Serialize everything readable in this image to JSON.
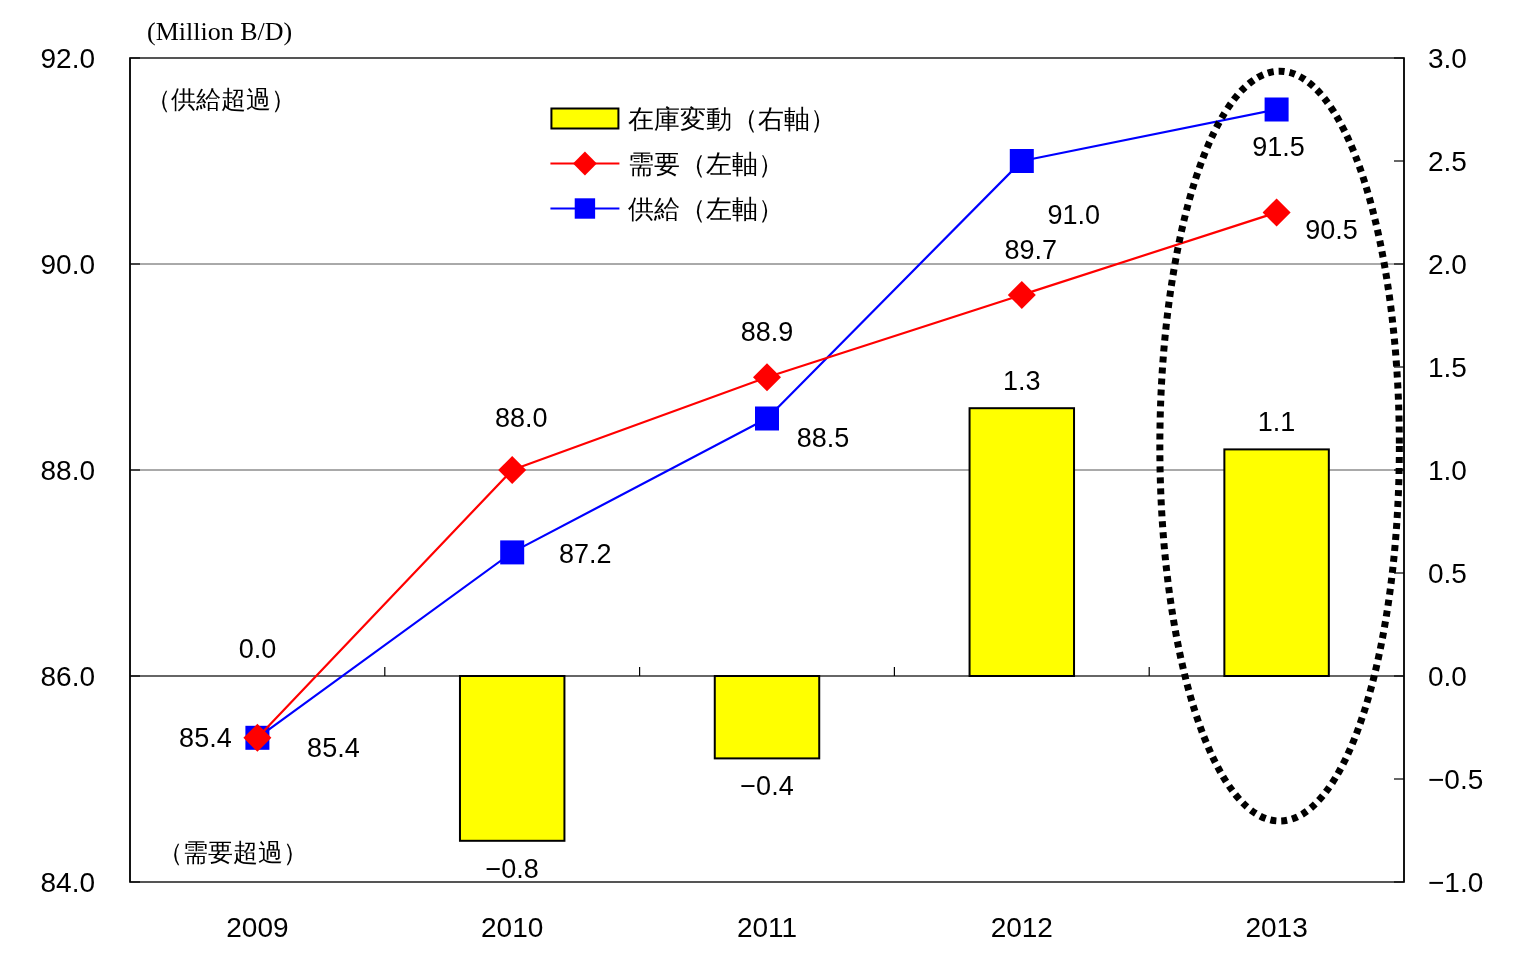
{
  "chart_data": {
    "type": "bar",
    "ylabel": "(Million B/D)",
    "annotations": [
      "（供給超過）",
      "（需要超過）"
    ],
    "categories": [
      "2009",
      "2010",
      "2011",
      "2012",
      "2013"
    ],
    "series": [
      {
        "name": "在庫変動（右軸）",
        "axis": "y2",
        "color": "#ffff00",
        "values": [
          0.0,
          -0.8,
          -0.4,
          1.3,
          1.1
        ],
        "value_labels": [
          "0.0",
          "−0.8",
          "−0.4",
          "1.3",
          "1.1"
        ]
      },
      {
        "name": "需要（左軸）",
        "type": "line",
        "marker": "diamond",
        "color": "#ff0000",
        "values": [
          85.4,
          88.0,
          88.9,
          89.7,
          90.5
        ],
        "value_labels": [
          "85.4",
          "88.0",
          "88.9",
          "89.7",
          "90.5"
        ]
      },
      {
        "name": "供給（左軸）",
        "type": "line",
        "marker": "square",
        "color": "#0000ff",
        "values": [
          85.4,
          87.2,
          88.5,
          91.0,
          91.5
        ],
        "value_labels": [
          "85.4",
          "87.2",
          "88.5",
          "91.0",
          "91.5"
        ]
      }
    ],
    "ylim": [
      84,
      92
    ],
    "yticks": [
      {
        "value": 84,
        "label": "84.0"
      },
      {
        "value": 86,
        "label": "86.0"
      },
      {
        "value": 88,
        "label": "88.0"
      },
      {
        "value": 90,
        "label": "90.0"
      },
      {
        "value": 92,
        "label": "92.0"
      }
    ],
    "y2lim": [
      -1,
      3
    ],
    "y2ticks": [
      {
        "value": -1,
        "label": "−1.0"
      },
      {
        "value": -0.5,
        "label": "−0.5"
      },
      {
        "value": 0,
        "label": "0.0"
      },
      {
        "value": 0.5,
        "label": "0.5"
      },
      {
        "value": 1,
        "label": "1.0"
      },
      {
        "value": 1.5,
        "label": "1.5"
      },
      {
        "value": 2,
        "label": "2.0"
      },
      {
        "value": 2.5,
        "label": "2.5"
      },
      {
        "value": 3,
        "label": "3.0"
      }
    ],
    "grid": "y",
    "legend": "top"
  }
}
